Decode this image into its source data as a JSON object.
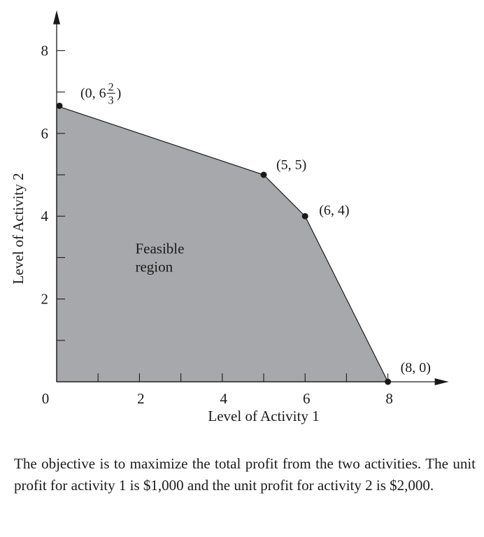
{
  "chart_data": {
    "type": "area",
    "title": "",
    "xlabel": "Level of Activity 1",
    "ylabel": "Level of Activity 2",
    "xlim": [
      0,
      9.3
    ],
    "ylim": [
      0,
      8.5
    ],
    "x_ticks_labeled": [
      {
        "value": 2,
        "label": "2"
      },
      {
        "value": 4,
        "label": "4"
      },
      {
        "value": 6,
        "label": "6"
      },
      {
        "value": 8,
        "label": "8"
      }
    ],
    "x_ticks_minor": [
      1,
      3,
      5,
      7
    ],
    "y_ticks_labeled": [
      {
        "value": 2,
        "label": "2"
      },
      {
        "value": 4,
        "label": "4"
      },
      {
        "value": 6,
        "label": "6"
      },
      {
        "value": 8,
        "label": "8"
      }
    ],
    "y_ticks_minor": [
      1,
      3,
      5,
      7
    ],
    "origin_label": "0",
    "region": {
      "label_line1": "Feasible",
      "label_line2": "region",
      "label_anchor": [
        1.9,
        3.1
      ],
      "fill": "#a7a8ab",
      "vertices": [
        [
          0,
          0
        ],
        [
          0,
          6.6667
        ],
        [
          5,
          5
        ],
        [
          6,
          4
        ],
        [
          8,
          0
        ]
      ]
    },
    "corner_points": [
      {
        "x": 0,
        "y": 6.6667,
        "label": "(0, 6",
        "label_whole": "6",
        "label_num": "2",
        "label_den": "3",
        "label_close": ")",
        "is_fraction": true
      },
      {
        "x": 5,
        "y": 5,
        "label": "(5, 5)"
      },
      {
        "x": 6,
        "y": 4,
        "label": "(6, 4)"
      },
      {
        "x": 8,
        "y": 0,
        "label": "(8, 0)"
      }
    ]
  },
  "caption": "The objective is to maximize the total profit from the two activities. The unit profit for activity 1 is $1,000 and the unit profit for activity 2 is $2,000."
}
